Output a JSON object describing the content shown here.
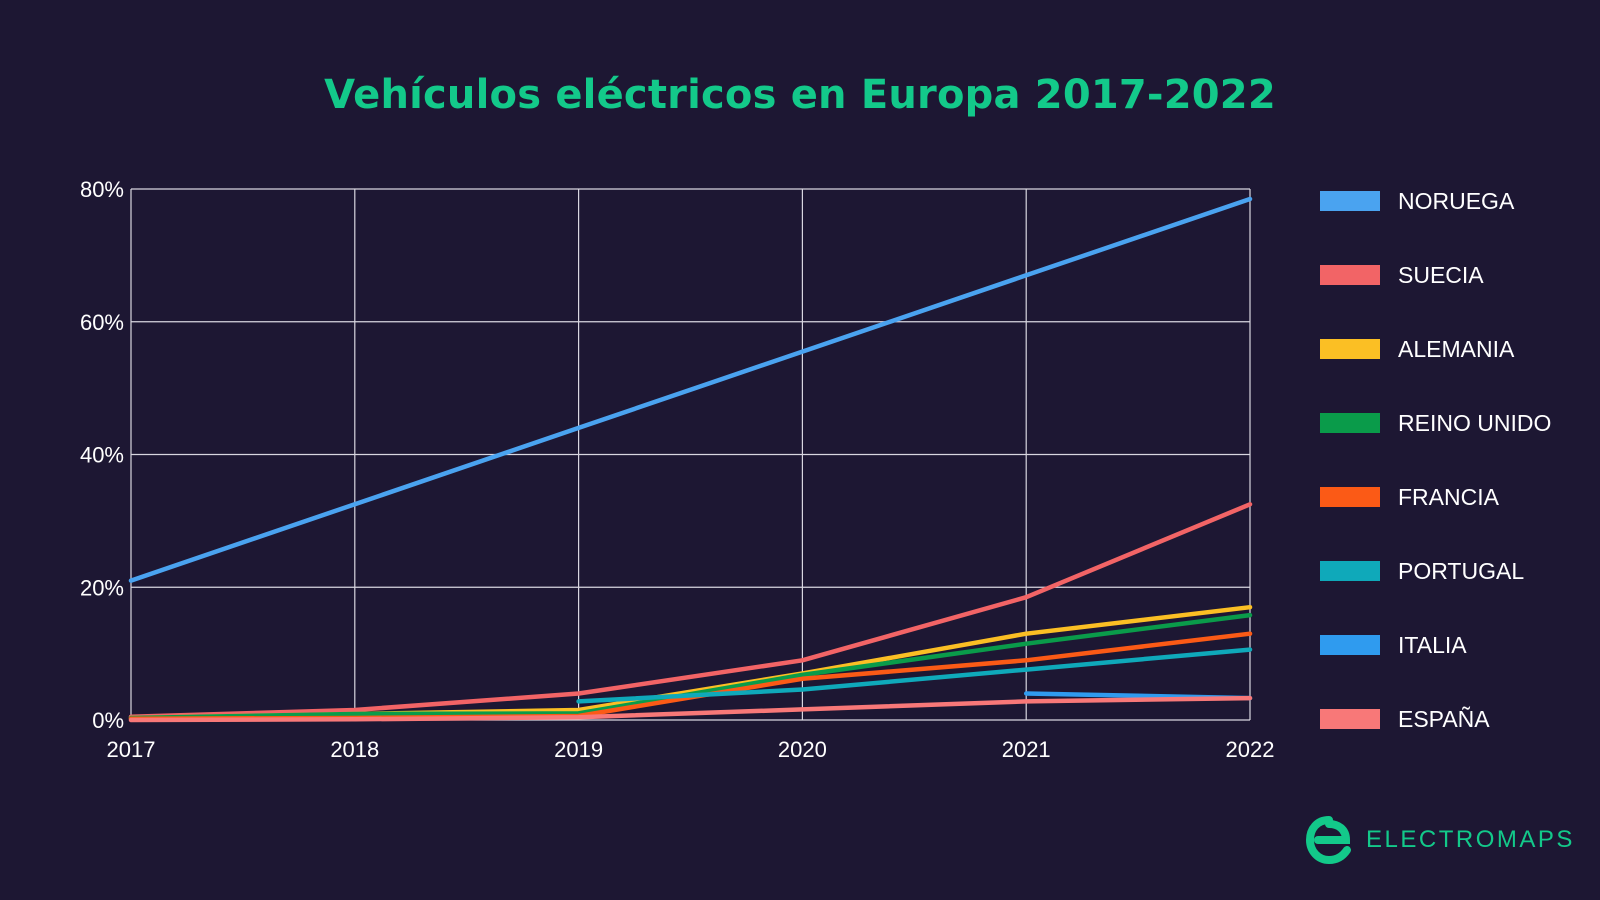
{
  "title": "Vehículos eléctricos en Europa 2017-2022",
  "brand": {
    "name": "ELECTROMAPS",
    "icon": "electromaps-logo-icon",
    "color": "#13c98a"
  },
  "chart_data": {
    "type": "line",
    "title": "Vehículos eléctricos en Europa 2017-2022",
    "xlabel": "",
    "ylabel": "",
    "x": [
      2017,
      2018,
      2019,
      2020,
      2021,
      2022
    ],
    "x_tick_labels": [
      "2017",
      "2018",
      "2019",
      "2020",
      "2021",
      "2022"
    ],
    "ylim": [
      0,
      80
    ],
    "y_ticks": [
      0,
      20,
      40,
      60,
      80
    ],
    "y_tick_labels": [
      "0%",
      "20%",
      "40%",
      "60%",
      "80%"
    ],
    "grid": true,
    "legend_position": "right",
    "series": [
      {
        "name": "NORUEGA",
        "color": "#4aa3f0",
        "points": [
          [
            2017,
            21
          ],
          [
            2019,
            44
          ],
          [
            2020,
            55.5
          ],
          [
            2021,
            67
          ],
          [
            2022,
            78.5
          ]
        ]
      },
      {
        "name": "SUECIA",
        "color": "#f26466",
        "points": [
          [
            2017,
            0.5
          ],
          [
            2018,
            1.5
          ],
          [
            2019,
            4
          ],
          [
            2020,
            9
          ],
          [
            2021,
            18.5
          ],
          [
            2022,
            32.5
          ]
        ]
      },
      {
        "name": "ALEMANIA",
        "color": "#fbbf24",
        "points": [
          [
            2017,
            0.3
          ],
          [
            2018,
            0.9
          ],
          [
            2019,
            1.5
          ],
          [
            2020,
            7
          ],
          [
            2021,
            13
          ],
          [
            2022,
            17
          ]
        ]
      },
      {
        "name": "REINO UNIDO",
        "color": "#0a9b4a",
        "points": [
          [
            2017,
            0.3
          ],
          [
            2018,
            0.9
          ],
          [
            2019,
            1
          ],
          [
            2020,
            6.8
          ],
          [
            2021,
            11.5
          ],
          [
            2022,
            15.8
          ]
        ]
      },
      {
        "name": "FRANCIA",
        "color": "#fb5a16",
        "points": [
          [
            2017,
            0.2
          ],
          [
            2018,
            0.3
          ],
          [
            2019,
            0.6
          ],
          [
            2020,
            6.2
          ],
          [
            2021,
            9
          ],
          [
            2022,
            13
          ]
        ]
      },
      {
        "name": "PORTUGAL",
        "color": "#0fa9ba",
        "points": [
          [
            2019,
            2.8
          ],
          [
            2020,
            4.6
          ],
          [
            2021,
            7.6
          ],
          [
            2022,
            10.6
          ]
        ]
      },
      {
        "name": "ITALIA",
        "color": "#2f9bef",
        "points": [
          [
            2021,
            4
          ],
          [
            2022,
            3.3
          ]
        ]
      },
      {
        "name": "ESPAÑA",
        "color": "#f87878",
        "points": [
          [
            2017,
            0
          ],
          [
            2018,
            0.1
          ],
          [
            2019,
            0.4
          ],
          [
            2020,
            1.6
          ],
          [
            2021,
            2.8
          ],
          [
            2022,
            3.3
          ]
        ]
      }
    ]
  }
}
